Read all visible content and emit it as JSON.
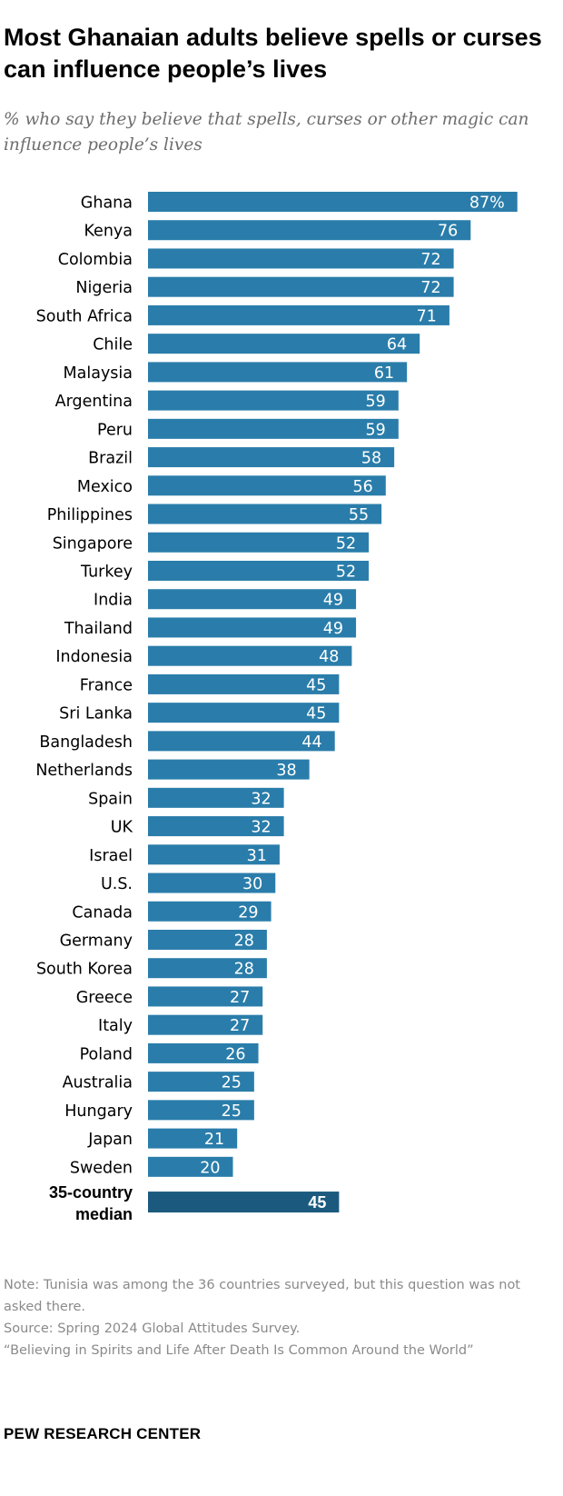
{
  "title": "Most Ghanaian adults believe spells or curses can influence people’s lives",
  "subtitle": "% who say they believe that spells, curses or other magic can influence people’s lives",
  "chart_data": {
    "type": "bar",
    "orientation": "horizontal",
    "categories": [
      "Ghana",
      "Kenya",
      "Colombia",
      "Nigeria",
      "South Africa",
      "Chile",
      "Malaysia",
      "Argentina",
      "Peru",
      "Brazil",
      "Mexico",
      "Philippines",
      "Singapore",
      "Turkey",
      "India",
      "Thailand",
      "Indonesia",
      "France",
      "Sri Lanka",
      "Bangladesh",
      "Netherlands",
      "Spain",
      "UK",
      "Israel",
      "U.S.",
      "Canada",
      "Germany",
      "South Korea",
      "Greece",
      "Italy",
      "Poland",
      "Australia",
      "Hungary",
      "Japan",
      "Sweden"
    ],
    "values": [
      87,
      76,
      72,
      72,
      71,
      64,
      61,
      59,
      59,
      58,
      56,
      55,
      52,
      52,
      49,
      49,
      48,
      45,
      45,
      44,
      38,
      32,
      32,
      31,
      30,
      29,
      28,
      28,
      27,
      27,
      26,
      25,
      25,
      21,
      20
    ],
    "value_labels": [
      "87%",
      "76",
      "72",
      "72",
      "71",
      "64",
      "61",
      "59",
      "59",
      "58",
      "56",
      "55",
      "52",
      "52",
      "49",
      "49",
      "48",
      "45",
      "45",
      "44",
      "38",
      "32",
      "32",
      "31",
      "30",
      "29",
      "28",
      "28",
      "27",
      "27",
      "26",
      "25",
      "25",
      "21",
      "20"
    ],
    "median": {
      "label_line1": "35-country",
      "label_line2": "median",
      "value": 45,
      "value_label": "45"
    },
    "bar_color": "#2A7DAA",
    "median_color": "#1B5A7E",
    "xlim": [
      0,
      100
    ]
  },
  "footer": {
    "note": "Note: Tunisia was among the 36 countries surveyed, but this question was not asked there.",
    "source": "Source: Spring 2024 Global Attitudes Survey.",
    "report": "“Believing in Spirits and Life After Death Is Common Around the World”",
    "brand": "PEW RESEARCH CENTER"
  }
}
